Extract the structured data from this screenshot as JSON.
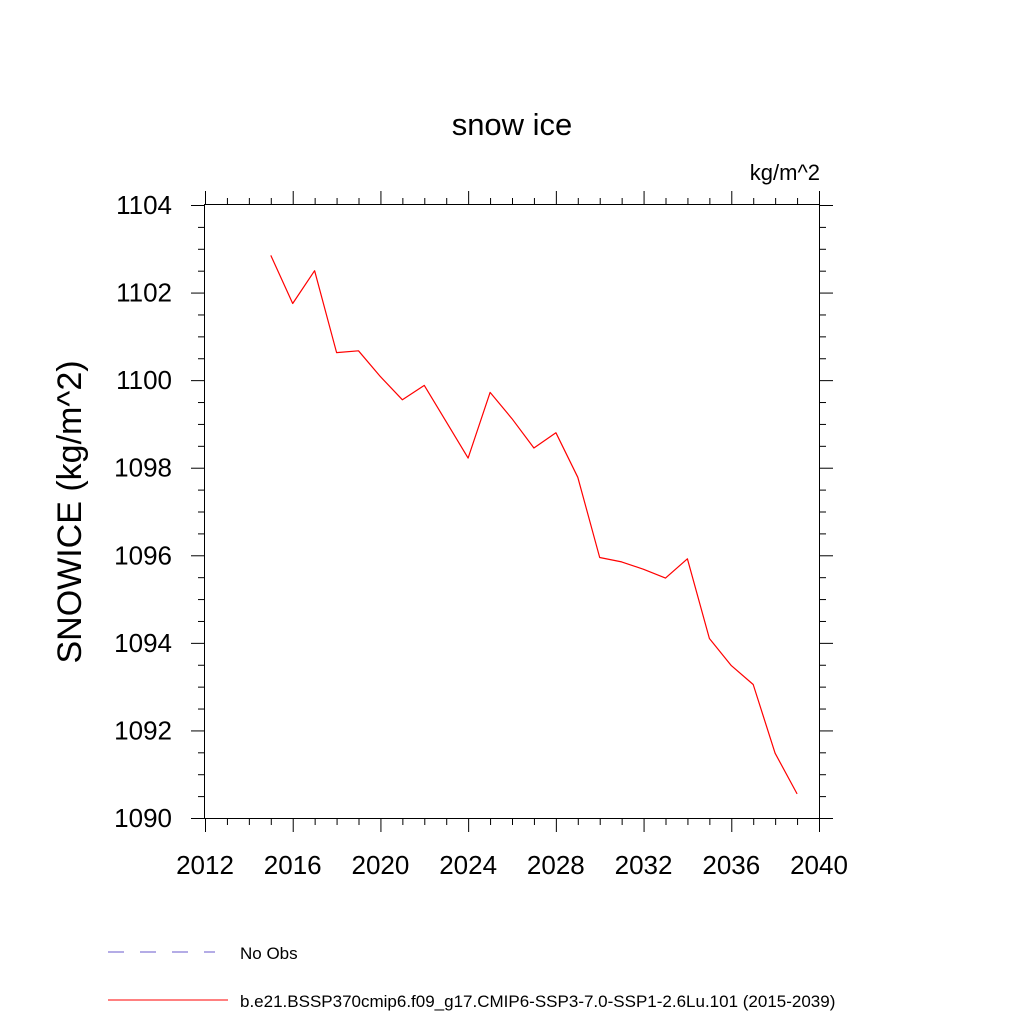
{
  "chart_data": {
    "type": "line",
    "title": "snow ice",
    "units": "kg/m^2",
    "ylabel": "SNOWICE  (kg/m^2)",
    "xlabel": "",
    "xlim": [
      2012,
      2040
    ],
    "ylim": [
      1090,
      1104
    ],
    "xticks": [
      2012,
      2016,
      2020,
      2024,
      2028,
      2032,
      2036,
      2040
    ],
    "yticks": [
      1090,
      1092,
      1094,
      1096,
      1098,
      1100,
      1102,
      1104
    ],
    "grid": false,
    "legend_position": "bottom-left",
    "series": [
      {
        "name": "b.e21.BSSP370cmip6.f09_g17.CMIP6-SSP3-7.0-SSP1-2.6Lu.101 (2015-2039)",
        "color": "#ff0000",
        "style": "solid",
        "x": [
          2015,
          2016,
          2017,
          2018,
          2019,
          2020,
          2021,
          2022,
          2023,
          2024,
          2025,
          2026,
          2027,
          2028,
          2029,
          2030,
          2031,
          2032,
          2033,
          2034,
          2035,
          2036,
          2037,
          2038,
          2039
        ],
        "y": [
          1102.85,
          1101.75,
          1102.5,
          1100.63,
          1100.67,
          1100.08,
          1099.55,
          1099.88,
          1099.05,
          1098.22,
          1099.72,
          1099.12,
          1098.45,
          1098.8,
          1097.78,
          1095.95,
          1095.85,
          1095.68,
          1095.48,
          1095.92,
          1094.1,
          1093.48,
          1093.05,
          1091.48,
          1090.55
        ]
      }
    ],
    "legend": [
      {
        "label": "No Obs",
        "color": "#6a5acd",
        "style": "dashed"
      },
      {
        "label": "b.e21.BSSP370cmip6.f09_g17.CMIP6-SSP3-7.0-SSP1-2.6Lu.101 (2015-2039)",
        "color": "#ff0000",
        "style": "solid"
      }
    ]
  }
}
